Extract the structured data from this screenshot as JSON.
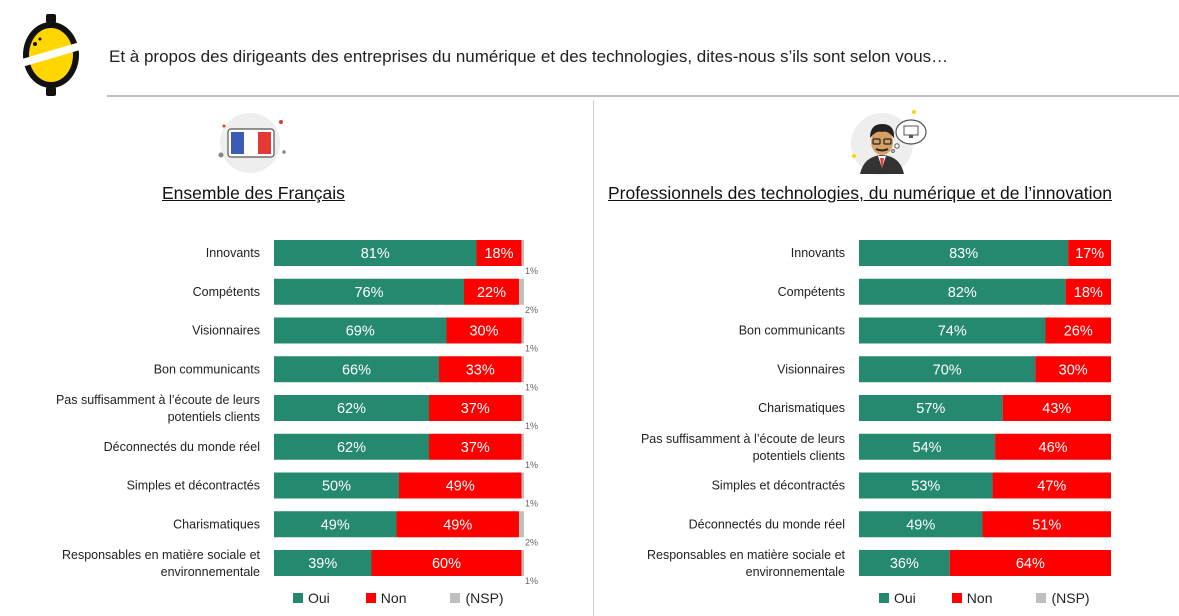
{
  "question": "Et à propos des dirigeants des entreprises du numérique et des technologies, dites-nous s’ils sont selon vous…",
  "colors": {
    "oui": "#24896e",
    "non": "#ff0000",
    "nsp": "#bfbfbf",
    "logo_yellow": "#ffd600"
  },
  "icons": {
    "left": "french-flag-icon",
    "right": "tech-professional-icon"
  },
  "legend": {
    "oui": "Oui",
    "non": "Non",
    "nsp": "(NSP)"
  },
  "chart_data": [
    {
      "type": "bar",
      "orientation": "horizontal-stacked-100",
      "title": "Ensemble des Français",
      "categories": [
        [
          "Innovants"
        ],
        [
          "Compétents"
        ],
        [
          "Visionnaires"
        ],
        [
          "Bon communicants"
        ],
        [
          "Pas suffisamment à l’écoute de leurs",
          "potentiels clients"
        ],
        [
          "Déconnectés du monde réel"
        ],
        [
          "Simples et décontractés"
        ],
        [
          "Charismatiques"
        ],
        [
          "Responsables en matière sociale et",
          "environnementale"
        ]
      ],
      "series": [
        {
          "name": "Oui",
          "values": [
            81,
            76,
            69,
            66,
            62,
            62,
            50,
            49,
            39
          ]
        },
        {
          "name": "Non",
          "values": [
            18,
            22,
            30,
            33,
            37,
            37,
            49,
            49,
            60
          ]
        },
        {
          "name": "(NSP)",
          "values": [
            1,
            2,
            1,
            1,
            1,
            1,
            1,
            2,
            1
          ]
        }
      ],
      "value_suffix": "%"
    },
    {
      "type": "bar",
      "orientation": "horizontal-stacked-100",
      "title": "Professionnels des technologies, du numérique et de l’innovation",
      "categories": [
        [
          "Innovants"
        ],
        [
          "Compétents"
        ],
        [
          "Bon communicants"
        ],
        [
          "Visionnaires"
        ],
        [
          "Charismatiques"
        ],
        [
          "Pas suffisamment à l’écoute de leurs",
          "potentiels clients"
        ],
        [
          "Simples et décontractés"
        ],
        [
          "Déconnectés du monde réel"
        ],
        [
          "Responsables en matière sociale et",
          "environnementale"
        ]
      ],
      "series": [
        {
          "name": "Oui",
          "values": [
            83,
            82,
            74,
            70,
            57,
            54,
            53,
            49,
            36
          ]
        },
        {
          "name": "Non",
          "values": [
            17,
            18,
            26,
            30,
            43,
            46,
            47,
            51,
            64
          ]
        }
      ],
      "value_suffix": "%"
    }
  ]
}
